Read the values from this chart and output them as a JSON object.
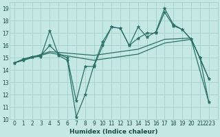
{
  "xlabel": "Humidex (Indice chaleur)",
  "bg_color": "#c5e8e4",
  "grid_color": "#a8d4cf",
  "line_color": "#2a7068",
  "ylim": [
    10,
    19.5
  ],
  "xlim": [
    -0.5,
    23
  ],
  "yticks": [
    10,
    11,
    12,
    13,
    14,
    15,
    16,
    17,
    18,
    19
  ],
  "xtick_positions": [
    0,
    1,
    2,
    3,
    4,
    5,
    6,
    7,
    8,
    9,
    10,
    11,
    12,
    13,
    14,
    15,
    16,
    17,
    18,
    19,
    20,
    21,
    22
  ],
  "xtick_labels": [
    "0",
    "1",
    "2",
    "3",
    "4",
    "5",
    "6",
    "7",
    "8",
    "9",
    "10",
    "11",
    "12",
    "13",
    "14",
    "15",
    "16",
    "17",
    "18",
    "19",
    "20",
    "21",
    "2223"
  ],
  "lines": [
    {
      "x": [
        0,
        1,
        2,
        3,
        4,
        5,
        6,
        7,
        8,
        9,
        10,
        11,
        12,
        13,
        14,
        15,
        16,
        17,
        18,
        19,
        20,
        21,
        22
      ],
      "y": [
        14.6,
        14.8,
        15.1,
        15.1,
        17.2,
        15.2,
        14.8,
        10.2,
        12.0,
        14.4,
        16.3,
        17.5,
        17.4,
        16.0,
        17.5,
        16.7,
        17.1,
        19.0,
        17.7,
        17.3,
        16.5,
        15.0,
        11.4
      ],
      "has_markers": true
    },
    {
      "x": [
        0,
        1,
        2,
        3,
        4,
        5,
        6,
        7,
        8,
        9,
        10,
        11,
        12,
        13,
        14,
        15,
        16,
        17,
        18,
        19,
        20,
        21,
        22
      ],
      "y": [
        14.6,
        14.9,
        15.1,
        15.2,
        16.0,
        15.3,
        15.0,
        11.5,
        14.3,
        14.3,
        16.0,
        17.5,
        17.4,
        16.0,
        16.6,
        17.0,
        17.0,
        18.7,
        17.6,
        17.3,
        16.5,
        15.0,
        13.3
      ],
      "has_markers": true
    },
    {
      "x": [
        0,
        4,
        9,
        14,
        17,
        20,
        22
      ],
      "y": [
        14.6,
        15.5,
        15.2,
        15.7,
        16.5,
        16.6,
        13.3
      ],
      "has_markers": false
    },
    {
      "x": [
        0,
        4,
        9,
        14,
        17,
        20,
        22
      ],
      "y": [
        14.6,
        15.4,
        14.8,
        15.3,
        16.2,
        16.5,
        11.4
      ],
      "has_markers": false
    }
  ]
}
